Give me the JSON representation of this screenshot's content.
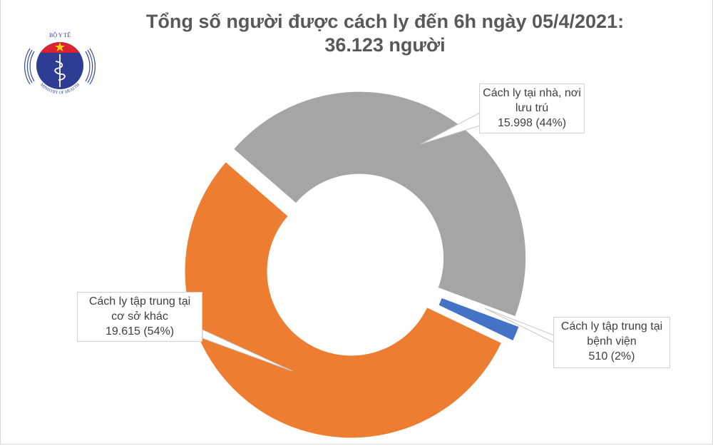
{
  "logo": {
    "top_text": "BỘ Y TẾ",
    "bottom_text": "MINISTRY OF HEALTH"
  },
  "title": {
    "line1": "Tổng số người được cách ly đến 6h ngày 05/4/2021:",
    "line2": "36.123 người"
  },
  "labels": {
    "home": {
      "line1": "Cách ly tại nhà, nơi",
      "line2": "lưu trú",
      "line3": "15.998 (44%)"
    },
    "hospital": {
      "line1": "Cách ly tập trung tại",
      "line2": "bệnh viện",
      "line3": "510 (2%)"
    },
    "facility": {
      "line1": "Cách ly tập trung tại",
      "line2": "cơ sở khác",
      "line3": "19.615 (54%)"
    }
  },
  "colors": {
    "home": "#a5a5a5",
    "hospital": "#4472c4",
    "facility": "#ed7d31",
    "title": "#595959",
    "label_text": "#404040"
  },
  "chart_data": {
    "type": "pie",
    "variant": "doughnut-exploded",
    "title": "Tổng số người được cách ly đến 6h ngày 05/4/2021: 36.123 người",
    "total": 36123,
    "categories": [
      "Cách ly tại nhà, nơi lưu trú",
      "Cách ly tập trung tại bệnh viện",
      "Cách ly tập trung tại cơ sở khác"
    ],
    "values": [
      15998,
      510,
      19615
    ],
    "percentages": [
      44,
      2,
      54
    ],
    "colors": [
      "#a5a5a5",
      "#4472c4",
      "#ed7d31"
    ],
    "legend": "none (data callout labels)"
  }
}
